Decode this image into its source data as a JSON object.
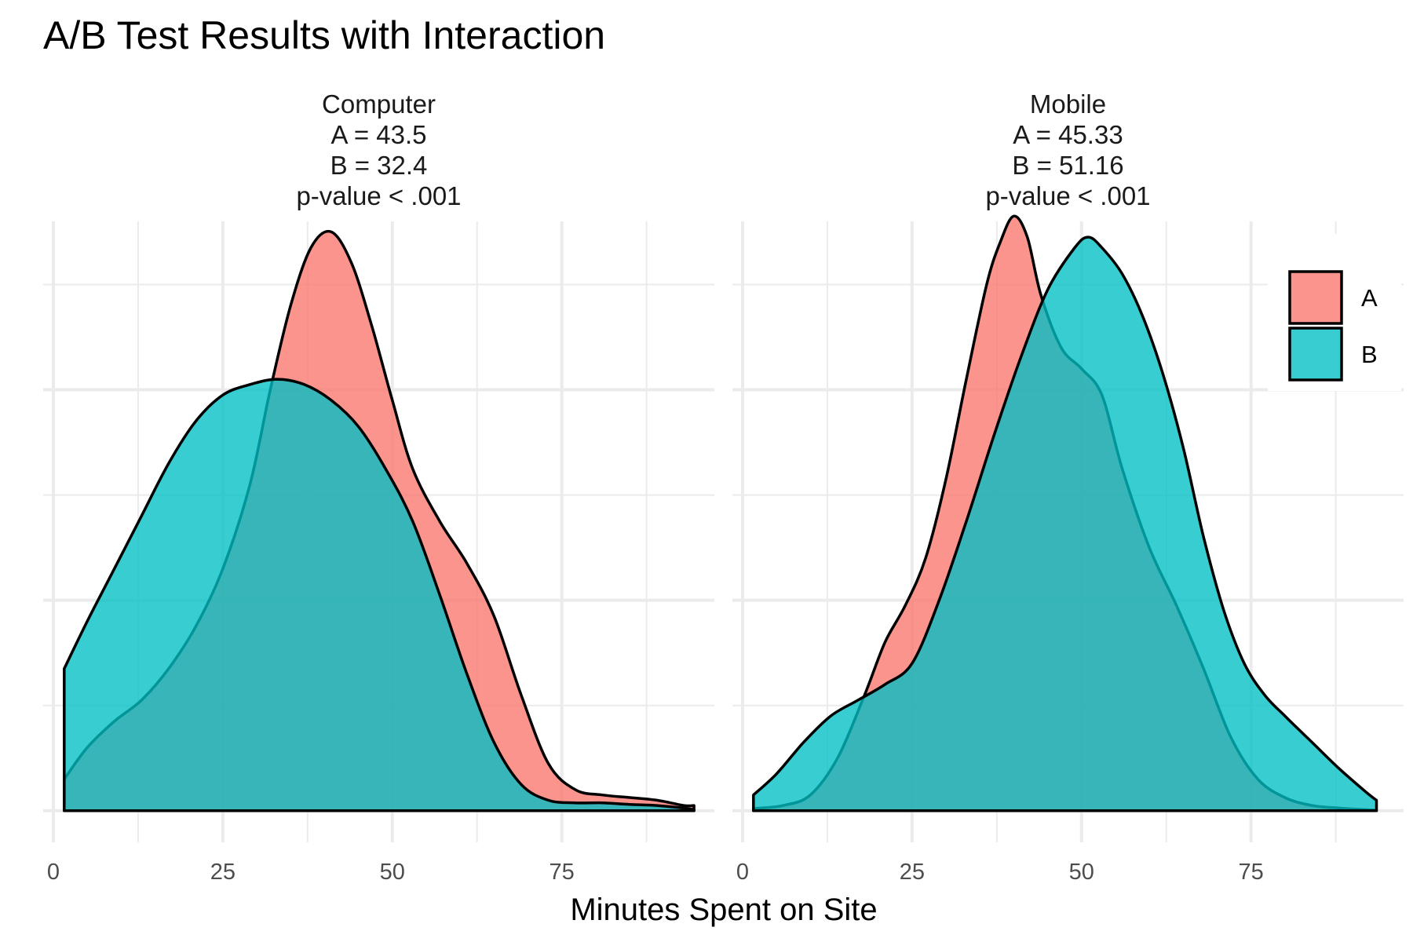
{
  "chart_data": {
    "type": "area",
    "title": "A/B Test Results with Interaction",
    "xlabel": "Minutes Spent on Site",
    "ylabel": "",
    "x_ticks": [
      0,
      25,
      50,
      75
    ],
    "xlim": [
      -1.5,
      97.5
    ],
    "ylim": [
      -0.06,
      1.12
    ],
    "grid": true,
    "legend": {
      "position": "right",
      "entries": [
        "A",
        "B"
      ]
    },
    "colors": {
      "A": "#F8766D",
      "B": "#00BFC4",
      "outline": "#000000",
      "grid": "#EBEBEB"
    },
    "panels": [
      {
        "name": "Computer",
        "strip_lines": [
          "Computer",
          "A = 43.5",
          "B = 32.4",
          "p-value < .001"
        ],
        "series": [
          {
            "name": "A",
            "x": [
              1.6,
              5,
              9,
              13,
              17,
              21,
              25,
              29,
              32,
              35,
              38,
              41,
              44,
              47,
              50,
              53,
              57,
              61,
              65,
              69,
              73,
              77,
              81,
              85,
              89,
              93,
              94.5
            ],
            "y": [
              0.06,
              0.12,
              0.17,
              0.21,
              0.27,
              0.35,
              0.46,
              0.62,
              0.8,
              0.96,
              1.07,
              1.1,
              1.04,
              0.92,
              0.78,
              0.65,
              0.55,
              0.47,
              0.37,
              0.22,
              0.09,
              0.04,
              0.03,
              0.025,
              0.02,
              0.01,
              0.01
            ]
          },
          {
            "name": "B",
            "x": [
              1.6,
              5,
              9,
              13,
              17,
              21,
              25,
              29,
              33,
              37,
              41,
              45,
              49,
              53,
              57,
              61,
              65,
              69,
              73,
              77,
              81,
              85,
              89,
              93,
              94.5
            ],
            "y": [
              0.27,
              0.36,
              0.46,
              0.56,
              0.66,
              0.74,
              0.79,
              0.81,
              0.82,
              0.81,
              0.78,
              0.73,
              0.65,
              0.55,
              0.41,
              0.26,
              0.13,
              0.05,
              0.02,
              0.015,
              0.015,
              0.012,
              0.01,
              0.005,
              0.002
            ]
          }
        ]
      },
      {
        "name": "Mobile",
        "strip_lines": [
          "Mobile",
          "A = 45.33",
          "B = 51.16",
          "p-value < .001"
        ],
        "series": [
          {
            "name": "A",
            "x": [
              1.6,
              6,
              10,
              14,
              18,
              21,
              24,
              27,
              30,
              33,
              36,
              38,
              40,
              42,
              44,
              47,
              50,
              53,
              56,
              60,
              64,
              68,
              72,
              76,
              80,
              84,
              88,
              92,
              93.5
            ],
            "y": [
              0.004,
              0.01,
              0.03,
              0.1,
              0.22,
              0.32,
              0.39,
              0.48,
              0.63,
              0.82,
              1.0,
              1.08,
              1.13,
              1.09,
              0.98,
              0.88,
              0.84,
              0.79,
              0.65,
              0.5,
              0.39,
              0.27,
              0.14,
              0.06,
              0.025,
              0.01,
              0.005,
              0.002,
              0.001
            ]
          },
          {
            "name": "B",
            "x": [
              1.6,
              5,
              9,
              13,
              17,
              21,
              25,
              29,
              33,
              37,
              41,
              45,
              49,
              51,
              53,
              56,
              59,
              62,
              65,
              68,
              71,
              74,
              77,
              80,
              84,
              88,
              92,
              93.5
            ],
            "y": [
              0.03,
              0.07,
              0.13,
              0.18,
              0.21,
              0.24,
              0.28,
              0.4,
              0.55,
              0.71,
              0.86,
              0.99,
              1.07,
              1.09,
              1.07,
              1.02,
              0.94,
              0.83,
              0.69,
              0.52,
              0.38,
              0.28,
              0.22,
              0.18,
              0.13,
              0.08,
              0.035,
              0.02
            ]
          }
        ]
      }
    ]
  }
}
